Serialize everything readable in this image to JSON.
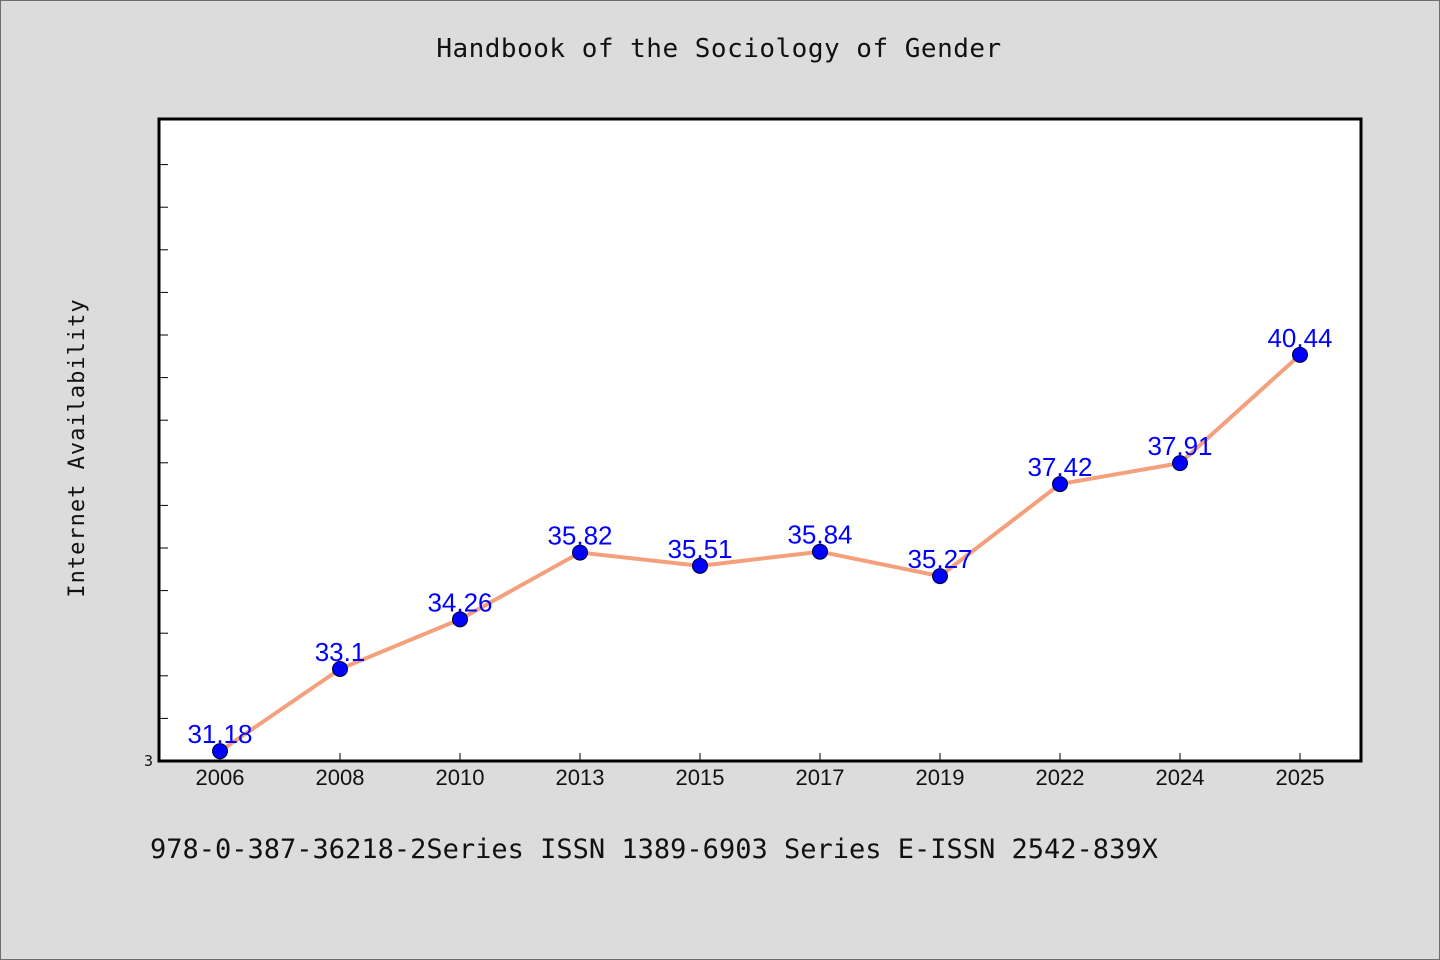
{
  "title": "Handbook of the Sociology of Gender",
  "footer": "978-0-387-36218-2Series ISSN 1389-6903 Series E-ISSN 2542-839X",
  "colors": {
    "background": "#dcdcdc",
    "plot_background": "#ffffff",
    "line": "#f4a07c",
    "marker": "#0000ff",
    "label": "#0000ff"
  },
  "chart_data": {
    "type": "line",
    "title": "Handbook of the Sociology of Gender",
    "xlabel": "",
    "ylabel": "Internet Availability",
    "categories": [
      "2006",
      "2008",
      "2010",
      "2013",
      "2015",
      "2017",
      "2019",
      "2022",
      "2024",
      "2025"
    ],
    "series": [
      {
        "values": [
          31.18,
          33.1,
          34.26,
          35.82,
          35.51,
          35.84,
          35.27,
          37.42,
          37.91,
          40.44
        ],
        "data_labels": [
          "31.18",
          "33.1",
          "34.26",
          "35.82",
          "35.51",
          "35.84",
          "35.27",
          "37.42",
          "37.91",
          "40.44"
        ]
      }
    ],
    "y_tick_labels": [
      "3"
    ],
    "ylim": [
      30.95,
      45.95
    ],
    "grid": false,
    "legend": "none"
  }
}
